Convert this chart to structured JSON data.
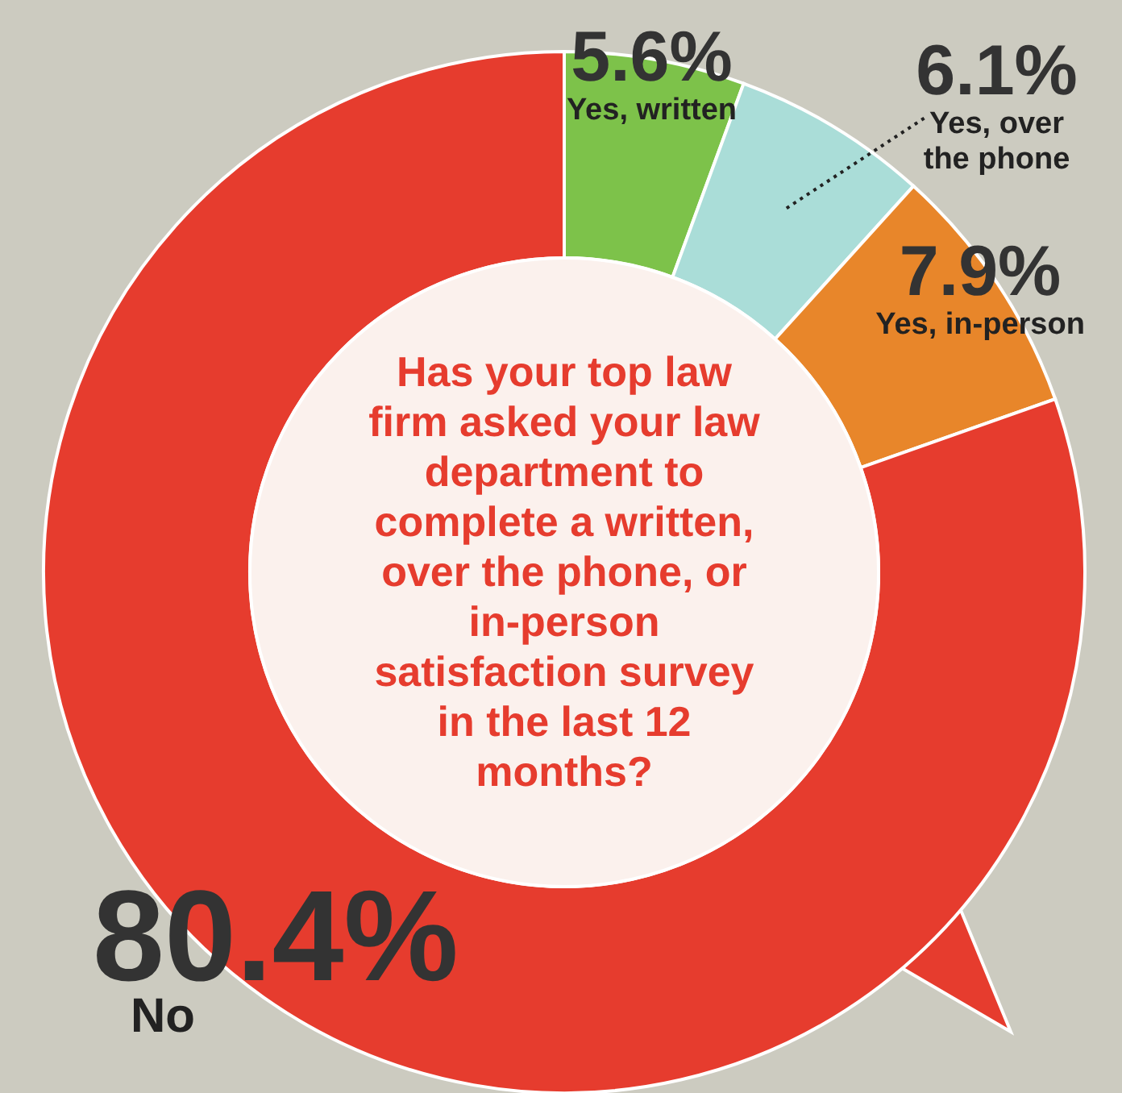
{
  "chart_data": {
    "type": "donut",
    "title": "Has your top law firm asked your law department to complete a written, over the phone, or in-person satisfaction survey in the last 12 months?",
    "categories": [
      "Yes, written",
      "Yes, over the phone",
      "Yes, in-person",
      "No"
    ],
    "values": [
      5.6,
      6.1,
      7.9,
      80.4
    ],
    "colors": [
      "#7dc24a",
      "#aaddd8",
      "#e8862a",
      "#e63c2e"
    ],
    "value_labels": [
      "5.6%",
      "6.1%",
      "7.9%",
      "80.4%"
    ]
  }
}
